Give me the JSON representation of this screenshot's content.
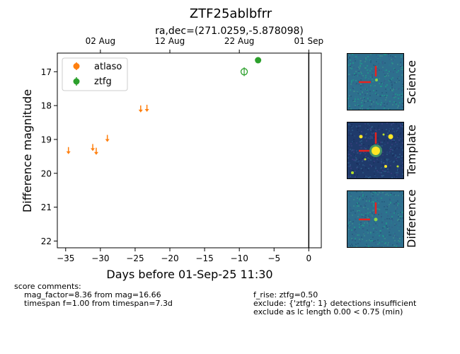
{
  "header": {
    "title": "ZTF25ablbfrr",
    "subtitle": "ra,dec=(271.0259,-5.878098)"
  },
  "chart_data": {
    "type": "scatter",
    "xlabel": "Days before 01-Sep-25 11:30",
    "ylabel": "Difference magnitude",
    "xlim": [
      -36.2,
      1.8
    ],
    "ylim": [
      22.2,
      16.45
    ],
    "y_inverted": true,
    "xticks": [
      -35,
      -30,
      -25,
      -20,
      -15,
      -10,
      -5,
      0
    ],
    "xtick_labels": [
      "−35",
      "−30",
      "−25",
      "−20",
      "−15",
      "−10",
      "−5",
      "0"
    ],
    "yticks": [
      17,
      18,
      19,
      20,
      21,
      22
    ],
    "ytick_labels": [
      "17",
      "18",
      "19",
      "20",
      "21",
      "22"
    ],
    "top_axis": {
      "ticks": [
        -30,
        -20,
        -10,
        0
      ],
      "labels": [
        "02 Aug",
        "12 Aug",
        "22 Aug",
        "01 Sep"
      ]
    },
    "vline_x": 0,
    "legend": {
      "placement": "upper-left",
      "entries": [
        {
          "label": "atlaso",
          "color": "#ff7f0e"
        },
        {
          "label": "ztfg",
          "color": "#2ca02c"
        }
      ]
    },
    "series": [
      {
        "name": "atlaso",
        "color": "#ff7f0e",
        "upper_limits": [
          {
            "x": -34.6,
            "y": 19.33
          },
          {
            "x": -31.1,
            "y": 19.24
          },
          {
            "x": -30.6,
            "y": 19.35
          },
          {
            "x": -29.0,
            "y": 18.97
          },
          {
            "x": -24.2,
            "y": 18.1
          },
          {
            "x": -23.3,
            "y": 18.08
          }
        ]
      },
      {
        "name": "ztfg",
        "color": "#2ca02c",
        "detections": [
          {
            "x": -7.3,
            "y": 16.66,
            "err": 0.04
          }
        ],
        "open_points": [
          {
            "x": -9.3,
            "y": 17.0,
            "err": 0.13
          }
        ]
      }
    ]
  },
  "cutouts": [
    {
      "label": "Science"
    },
    {
      "label": "Template"
    },
    {
      "label": "Difference"
    }
  ],
  "comments": {
    "heading": "score comments:",
    "left": [
      "mag_factor=8.36 from mag=16.66",
      "timespan f=1.00 from timespan=7.3d"
    ],
    "right": [
      "f_rise: ztfg=0.50",
      "exclude: {'ztfg': 1} detections insufficient",
      "exclude as lc length 0.00 < 0.75 (min)"
    ]
  },
  "colors": {
    "cutout_bg": "#2e6f8e",
    "template_bg": "#1f3a6b",
    "marker_red": "#e8231f",
    "source_yellow": "#fde725"
  }
}
